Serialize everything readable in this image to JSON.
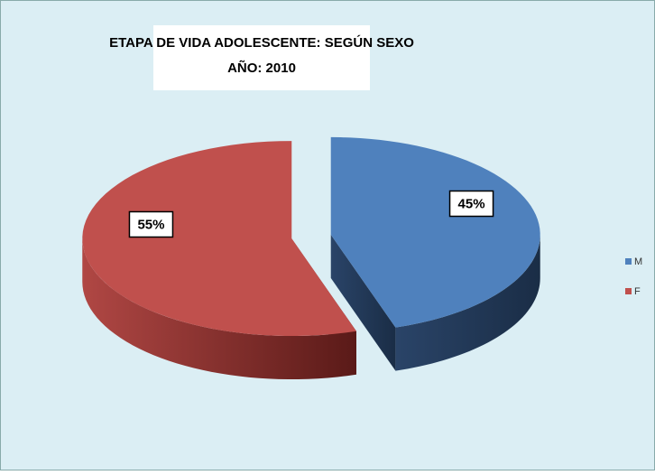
{
  "chart_data": {
    "type": "pie",
    "title": "ETAPA DE VIDA ADOLESCENTE: SEGÚN  SEXO",
    "subtitle": "AÑO: 2010",
    "categories": [
      "M",
      "F"
    ],
    "values": [
      45,
      55
    ],
    "value_labels": [
      "45%",
      "55%"
    ],
    "colors": [
      "#4f81bd",
      "#c0504d"
    ],
    "legend": "right"
  }
}
